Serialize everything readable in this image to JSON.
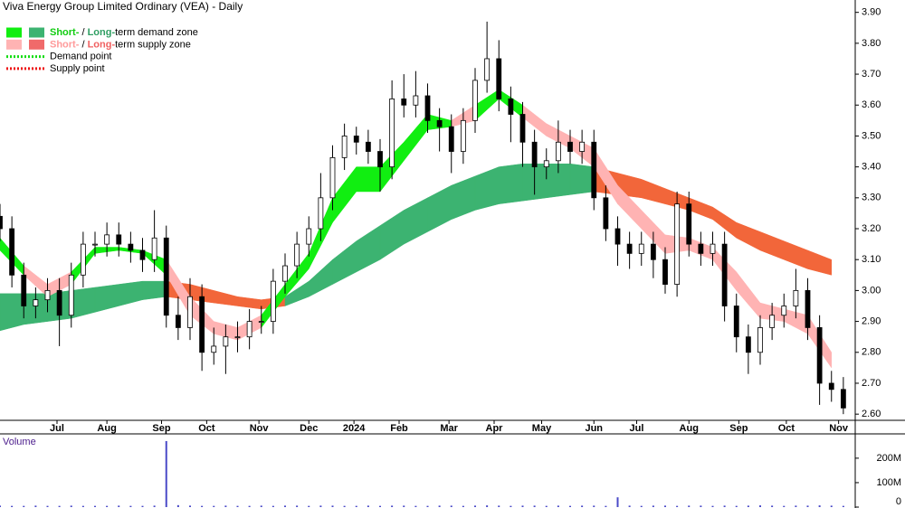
{
  "chart_data": {
    "type": "candlestick",
    "title": "Viva Energy Group Limited Ordinary (VEA) - Daily",
    "x": [
      0,
      5,
      10,
      15,
      20,
      25,
      30,
      35,
      40,
      45,
      50,
      55,
      60,
      65,
      70,
      75,
      80,
      85,
      90,
      95,
      100,
      105,
      110,
      115,
      120,
      125,
      130,
      135,
      140,
      145,
      150,
      155,
      160,
      165,
      170,
      175,
      180,
      185,
      190,
      195,
      200,
      205,
      210,
      215,
      220,
      225,
      230,
      235,
      240,
      245,
      250,
      255,
      260,
      265,
      270,
      275,
      280,
      285,
      290,
      295,
      300,
      305,
      310,
      315,
      320,
      325,
      330,
      335,
      340,
      345,
      350,
      355
    ],
    "open": [
      3.24,
      3.2,
      3.05,
      2.95,
      2.97,
      3.0,
      2.92,
      3.05,
      3.15,
      3.15,
      3.18,
      3.15,
      3.13,
      3.1,
      3.17,
      2.92,
      2.88,
      2.98,
      2.8,
      2.82,
      2.85,
      2.85,
      2.9,
      2.9,
      3.03,
      3.08,
      3.15,
      3.2,
      3.3,
      3.43,
      3.5,
      3.48,
      3.45,
      3.4,
      3.62,
      3.6,
      3.63,
      3.55,
      3.53,
      3.45,
      3.55,
      3.68,
      3.75,
      3.62,
      3.57,
      3.48,
      3.4,
      3.42,
      3.48,
      3.45,
      3.48,
      3.3,
      3.2,
      3.15,
      3.12,
      3.15,
      3.1,
      3.02,
      3.28,
      3.15,
      3.12,
      3.15,
      2.95,
      2.85,
      2.8,
      2.88,
      2.92,
      2.95,
      3.0,
      2.88,
      2.7,
      2.68
    ],
    "high": [
      3.28,
      3.24,
      3.09,
      3.01,
      3.04,
      3.04,
      3.09,
      3.19,
      3.19,
      3.22,
      3.22,
      3.19,
      3.17,
      3.26,
      3.21,
      2.98,
      3.04,
      3.02,
      2.88,
      2.89,
      2.9,
      2.94,
      2.95,
      3.07,
      3.12,
      3.19,
      3.24,
      3.38,
      3.47,
      3.54,
      3.53,
      3.52,
      3.49,
      3.68,
      3.7,
      3.71,
      3.67,
      3.59,
      3.57,
      3.59,
      3.72,
      3.87,
      3.81,
      3.66,
      3.61,
      3.52,
      3.46,
      3.55,
      3.52,
      3.52,
      3.52,
      3.34,
      3.24,
      3.19,
      3.19,
      3.19,
      3.14,
      3.32,
      3.32,
      3.19,
      3.19,
      3.19,
      2.99,
      2.89,
      2.92,
      2.96,
      2.99,
      3.07,
      3.04,
      2.92,
      2.74,
      2.72
    ],
    "low": [
      3.16,
      3.01,
      2.91,
      2.91,
      2.93,
      2.82,
      2.88,
      3.01,
      3.11,
      3.11,
      3.11,
      3.09,
      3.06,
      3.06,
      2.88,
      2.84,
      2.84,
      2.74,
      2.76,
      2.73,
      2.8,
      2.81,
      2.86,
      2.86,
      2.99,
      3.04,
      3.11,
      3.16,
      3.26,
      3.39,
      3.44,
      3.41,
      3.32,
      3.36,
      3.56,
      3.56,
      3.51,
      3.45,
      3.38,
      3.41,
      3.51,
      3.64,
      3.58,
      3.48,
      3.4,
      3.31,
      3.36,
      3.38,
      3.41,
      3.41,
      3.26,
      3.16,
      3.08,
      3.07,
      3.08,
      3.04,
      2.99,
      2.98,
      3.11,
      3.08,
      3.08,
      2.9,
      2.8,
      2.73,
      2.76,
      2.84,
      2.88,
      2.91,
      2.84,
      2.63,
      2.64,
      2.6
    ],
    "close": [
      3.2,
      3.05,
      2.95,
      2.97,
      3.0,
      2.92,
      3.05,
      3.15,
      3.15,
      3.18,
      3.15,
      3.13,
      3.1,
      3.17,
      2.92,
      2.88,
      2.98,
      2.8,
      2.82,
      2.85,
      2.85,
      2.9,
      2.9,
      3.03,
      3.08,
      3.15,
      3.2,
      3.3,
      3.43,
      3.5,
      3.48,
      3.45,
      3.4,
      3.62,
      3.6,
      3.63,
      3.55,
      3.53,
      3.45,
      3.55,
      3.68,
      3.75,
      3.62,
      3.57,
      3.48,
      3.4,
      3.42,
      3.48,
      3.45,
      3.48,
      3.3,
      3.2,
      3.15,
      3.12,
      3.15,
      3.1,
      3.02,
      3.28,
      3.15,
      3.12,
      3.15,
      2.95,
      2.85,
      2.8,
      2.88,
      2.92,
      2.95,
      3.0,
      2.88,
      2.7,
      2.68,
      2.62
    ],
    "candle_colors": {
      "up": "#ffffff",
      "down": "#000000",
      "outline": "#000000"
    },
    "xlim": [
      0,
      360
    ],
    "xticks": [
      {
        "value": 24,
        "label": "Jul"
      },
      {
        "value": 45,
        "label": "Aug"
      },
      {
        "value": 68,
        "label": "Sep"
      },
      {
        "value": 87,
        "label": "Oct"
      },
      {
        "value": 109,
        "label": "Nov"
      },
      {
        "value": 130,
        "label": "Dec"
      },
      {
        "value": 149,
        "label": "2024"
      },
      {
        "value": 168,
        "label": "Feb"
      },
      {
        "value": 189,
        "label": "Mar"
      },
      {
        "value": 208,
        "label": "Apr"
      },
      {
        "value": 228,
        "label": "May"
      },
      {
        "value": 250,
        "label": "Jun"
      },
      {
        "value": 268,
        "label": "Jul"
      },
      {
        "value": 290,
        "label": "Aug"
      },
      {
        "value": 311,
        "label": "Sep"
      },
      {
        "value": 331,
        "label": "Oct"
      },
      {
        "value": 353,
        "label": "Nov"
      }
    ],
    "ylim": [
      2.58,
      3.94
    ],
    "yticks": [
      {
        "value": 2.6,
        "label": "2.60"
      },
      {
        "value": 2.7,
        "label": "2.70"
      },
      {
        "value": 2.8,
        "label": "2.80"
      },
      {
        "value": 2.9,
        "label": "2.90"
      },
      {
        "value": 3.0,
        "label": "3.00"
      },
      {
        "value": 3.1,
        "label": "3.10"
      },
      {
        "value": 3.2,
        "label": "3.20"
      },
      {
        "value": 3.3,
        "label": "3.30"
      },
      {
        "value": 3.4,
        "label": "3.40"
      },
      {
        "value": 3.5,
        "label": "3.50"
      },
      {
        "value": 3.6,
        "label": "3.60"
      },
      {
        "value": 3.7,
        "label": "3.70"
      },
      {
        "value": 3.8,
        "label": "3.80"
      },
      {
        "value": 3.9,
        "label": "3.90"
      }
    ],
    "zones": [
      {
        "x": [
          0,
          10,
          20,
          30,
          40,
          50,
          60,
          70,
          80,
          90,
          100,
          110,
          120,
          130,
          140,
          150,
          160,
          170,
          180,
          190,
          200,
          210,
          220,
          230,
          240,
          250,
          260,
          270,
          280,
          290,
          300,
          310,
          320,
          330,
          340,
          350
        ],
        "upper": [
          2.99,
          2.99,
          2.99,
          3.0,
          3.01,
          3.02,
          3.03,
          3.03,
          3.02,
          3.0,
          2.98,
          2.97,
          2.98,
          3.03,
          3.1,
          3.16,
          3.21,
          3.26,
          3.3,
          3.34,
          3.37,
          3.4,
          3.41,
          3.41,
          3.41,
          3.4,
          3.38,
          3.36,
          3.33,
          3.3,
          3.27,
          3.22,
          3.19,
          3.16,
          3.13,
          3.1
        ],
        "lower": [
          2.87,
          2.89,
          2.9,
          2.91,
          2.93,
          2.95,
          2.97,
          2.98,
          2.97,
          2.96,
          2.95,
          2.94,
          2.95,
          2.98,
          3.02,
          3.06,
          3.1,
          3.15,
          3.19,
          3.23,
          3.26,
          3.28,
          3.29,
          3.3,
          3.31,
          3.32,
          3.31,
          3.3,
          3.28,
          3.26,
          3.23,
          3.17,
          3.13,
          3.1,
          3.07,
          3.05
        ],
        "state": [
          "demand",
          "demand",
          "demand",
          "demand",
          "demand",
          "demand",
          "demand",
          "supply",
          "supply",
          "supply",
          "supply",
          "supply",
          "demand",
          "demand",
          "demand",
          "demand",
          "demand",
          "demand",
          "demand",
          "demand",
          "demand",
          "demand",
          "demand",
          "demand",
          "demand",
          "supply",
          "supply",
          "supply",
          "supply",
          "supply",
          "supply",
          "supply",
          "supply",
          "supply",
          "supply",
          "supply"
        ],
        "colors": {
          "demand": "#3cb371",
          "supply": "#f2663a"
        }
      },
      {
        "x": [
          0,
          10,
          20,
          30,
          40,
          50,
          60,
          70,
          80,
          90,
          100,
          110,
          120,
          130,
          140,
          150,
          160,
          170,
          180,
          190,
          200,
          210,
          220,
          230,
          240,
          250,
          260,
          270,
          280,
          290,
          300,
          310,
          320,
          330,
          340,
          350
        ],
        "upper": [
          3.17,
          3.08,
          3.02,
          3.06,
          3.14,
          3.14,
          3.13,
          3.1,
          2.98,
          2.9,
          2.88,
          2.92,
          3.02,
          3.12,
          3.3,
          3.4,
          3.4,
          3.48,
          3.57,
          3.55,
          3.6,
          3.65,
          3.6,
          3.54,
          3.5,
          3.46,
          3.34,
          3.26,
          3.18,
          3.17,
          3.14,
          3.06,
          2.96,
          2.94,
          2.92,
          2.8
        ],
        "lower": [
          3.13,
          3.05,
          2.98,
          3.02,
          3.12,
          3.13,
          3.12,
          3.05,
          2.92,
          2.86,
          2.84,
          2.88,
          2.98,
          3.07,
          3.22,
          3.32,
          3.32,
          3.42,
          3.52,
          3.53,
          3.55,
          3.62,
          3.56,
          3.5,
          3.46,
          3.4,
          3.28,
          3.2,
          3.12,
          3.13,
          3.1,
          3.0,
          2.91,
          2.9,
          2.86,
          2.75
        ],
        "state": [
          "demand",
          "supply",
          "supply",
          "demand",
          "demand",
          "demand",
          "demand",
          "supply",
          "supply",
          "supply",
          "supply",
          "demand",
          "demand",
          "demand",
          "demand",
          "demand",
          "demand",
          "demand",
          "demand",
          "supply",
          "demand",
          "demand",
          "supply",
          "supply",
          "supply",
          "supply",
          "supply",
          "supply",
          "supply",
          "supply",
          "supply",
          "supply",
          "supply",
          "supply",
          "supply",
          "supply"
        ],
        "colors": {
          "demand": "#11ee11",
          "supply": "#ffb3b3"
        }
      }
    ],
    "legend": {
      "position": "top-left",
      "items": [
        {
          "parts": [
            "Short-",
            " / ",
            "Long-",
            "term demand zone"
          ],
          "part_colors": [
            "#11cc11",
            "#000000",
            "#2e9e62",
            "#000000"
          ],
          "swatches": [
            "#11ee11",
            "#3cb371"
          ]
        },
        {
          "parts": [
            "Short-",
            " / ",
            "Long-",
            "term supply zone"
          ],
          "part_colors": [
            "#ff9a9a",
            "#000000",
            "#f06060",
            "#000000"
          ],
          "swatches": [
            "#ffb3b3",
            "#f06a6a"
          ]
        },
        {
          "parts": [
            "Demand point"
          ],
          "part_colors": [
            "#000000"
          ],
          "dotted": "#11dd11"
        },
        {
          "parts": [
            "Supply point"
          ],
          "part_colors": [
            "#000000"
          ],
          "dotted": "#ee1111"
        }
      ]
    },
    "volume": {
      "label": "Volume",
      "color": "#4a4ac8",
      "values": [
        6,
        5,
        5,
        6,
        5,
        5,
        6,
        5,
        5,
        5,
        6,
        5,
        5,
        6,
        270,
        8,
        6,
        5,
        5,
        6,
        5,
        5,
        6,
        5,
        6,
        6,
        5,
        6,
        6,
        5,
        5,
        6,
        5,
        6,
        6,
        5,
        5,
        6,
        6,
        5,
        6,
        7,
        6,
        5,
        6,
        6,
        5,
        6,
        5,
        6,
        6,
        5,
        40,
        6,
        5,
        6,
        6,
        5,
        6,
        6,
        5,
        6,
        5,
        6,
        7,
        6,
        5,
        6,
        6,
        7,
        6,
        5
      ],
      "ylim": [
        0,
        292
      ],
      "yticks": [
        {
          "value": 0,
          "label": "0"
        },
        {
          "value": 100,
          "label": "100M"
        },
        {
          "value": 200,
          "label": "200M"
        }
      ]
    }
  }
}
